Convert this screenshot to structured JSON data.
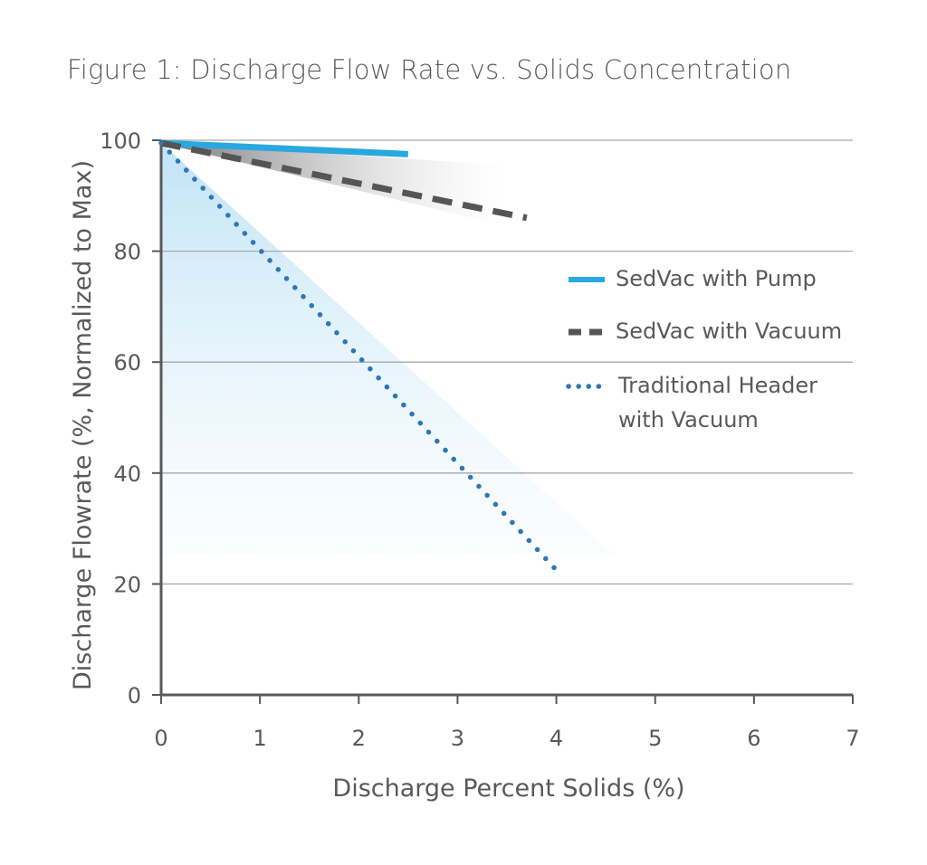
{
  "chart_data": {
    "type": "line",
    "title": "Figure 1: Discharge Flow Rate vs. Solids Concentration",
    "xlabel": "Discharge Percent Solids (%)",
    "ylabel": "Discharge Flowrate (%, Normalized to Max)",
    "xlim": [
      0,
      7
    ],
    "ylim": [
      0,
      100
    ],
    "x_ticks": [
      "0",
      "1",
      "2",
      "3",
      "4",
      "5",
      "6",
      "7"
    ],
    "y_ticks": [
      "0",
      "20",
      "40",
      "60",
      "80",
      "100"
    ],
    "grid": "horizontal",
    "legend_position": "right",
    "series": [
      {
        "name": "SedVac with Pump",
        "color": "#29a8e0",
        "style": "solid",
        "x": [
          0,
          2.5
        ],
        "y": [
          99.5,
          97.5
        ]
      },
      {
        "name": "SedVac with Vacuum",
        "color": "#555555",
        "style": "dashed",
        "x": [
          0,
          3.7
        ],
        "y": [
          99.5,
          86
        ]
      },
      {
        "name": "Traditional Header\nwith Vacuum",
        "color": "#2e76b9",
        "style": "dotted",
        "x": [
          0,
          4
        ],
        "y": [
          99.5,
          22.5
        ]
      }
    ]
  }
}
